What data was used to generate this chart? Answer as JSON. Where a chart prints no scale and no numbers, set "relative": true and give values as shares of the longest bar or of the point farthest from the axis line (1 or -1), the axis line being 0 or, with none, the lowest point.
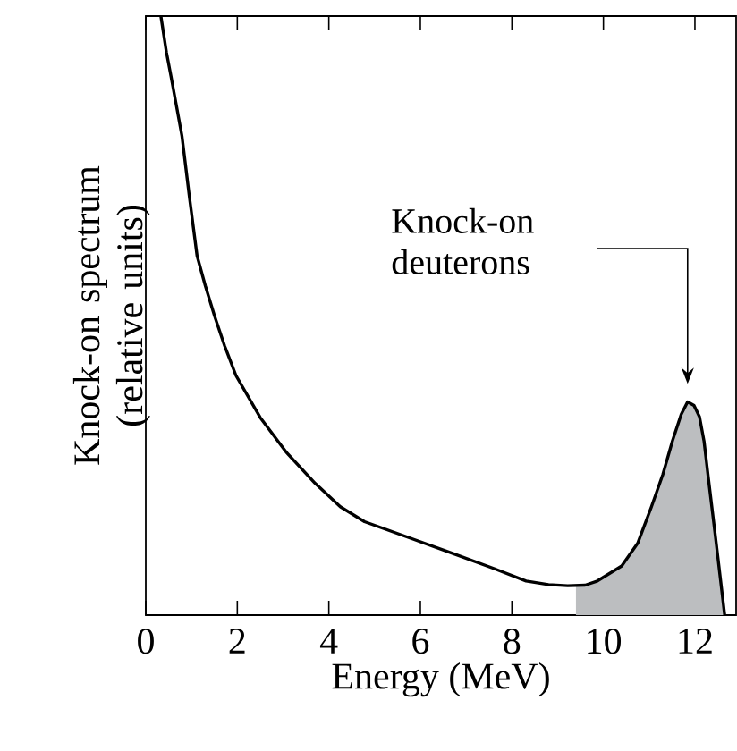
{
  "chart_data": {
    "type": "line",
    "xlabel": "Energy (MeV)",
    "ylabel": "Knock-on spectrum (relative units)",
    "relative": true,
    "xlim": [
      0,
      12.9
    ],
    "xticks": [
      0,
      2,
      4,
      6,
      8,
      10,
      12
    ],
    "annotations": [
      "Knock-on deuterons"
    ],
    "series": [
      {
        "type": "area",
        "color": "#bcbec0",
        "x": [
          9.4,
          9.6,
          9.87,
          10.4,
          10.75,
          11.05,
          11.3,
          11.51,
          11.7,
          11.84,
          11.98,
          12.1,
          12.2,
          12.29,
          12.45,
          12.65
        ],
        "values": [
          0.05,
          0.05,
          0.057,
          0.082,
          0.12,
          0.181,
          0.235,
          0.291,
          0.335,
          0.356,
          0.35,
          0.331,
          0.29,
          0.231,
          0.13,
          0
        ]
      },
      {
        "color": "#000000",
        "x": [
          0.33,
          0.45,
          0.55,
          0.67,
          0.79,
          0.95,
          1.12,
          1.3,
          1.5,
          1.72,
          1.97,
          2.5,
          3.08,
          3.7,
          4.25,
          4.78,
          5.8,
          6.74,
          7.6,
          8.31,
          8.8,
          9.22,
          9.6,
          9.87,
          10.4,
          10.75,
          11.05,
          11.3,
          11.51,
          11.7,
          11.84,
          11.98,
          12.1,
          12.2,
          12.29,
          12.45,
          12.65
        ],
        "values": [
          1.0,
          0.94,
          0.9,
          0.85,
          0.8,
          0.7,
          0.6,
          0.55,
          0.5,
          0.45,
          0.4,
          0.33,
          0.271,
          0.22,
          0.181,
          0.156,
          0.128,
          0.102,
          0.078,
          0.057,
          0.051,
          0.049,
          0.05,
          0.057,
          0.082,
          0.12,
          0.181,
          0.235,
          0.291,
          0.335,
          0.356,
          0.35,
          0.331,
          0.29,
          0.231,
          0.13,
          0
        ]
      }
    ]
  }
}
